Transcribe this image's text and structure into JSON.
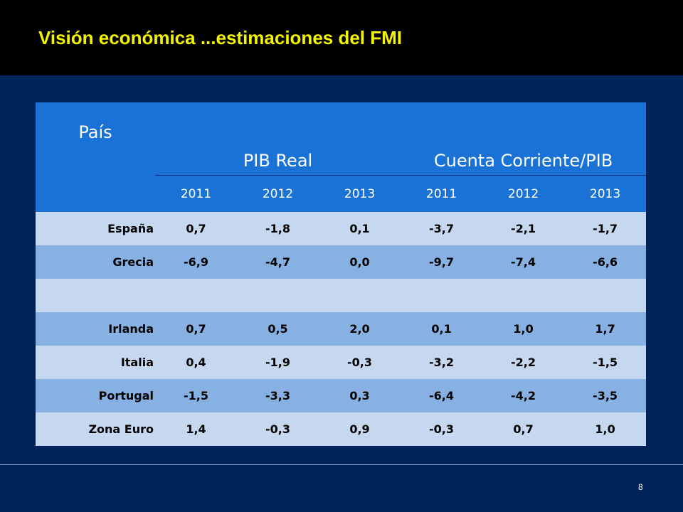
{
  "title": "Visión económica ...estimaciones del FMI",
  "table": {
    "col_country": "País",
    "group1": "PIB Real",
    "group2": "Cuenta Corriente/PIB",
    "years": [
      "2011",
      "2012",
      "2013",
      "2011",
      "2012",
      "2013"
    ],
    "rows": [
      {
        "country": "España",
        "values": [
          "0,7",
          "-1,8",
          "0,1",
          "-3,7",
          "-2,1",
          "-1,7"
        ]
      },
      {
        "country": "Grecia",
        "values": [
          "-6,9",
          "-4,7",
          "0,0",
          "-9,7",
          "-7,4",
          "-6,6"
        ]
      },
      {
        "country": "",
        "values": [
          "",
          "",
          "",
          "",
          "",
          ""
        ]
      },
      {
        "country": "Irlanda",
        "values": [
          "0,7",
          "0,5",
          "2,0",
          "0,1",
          "1,0",
          "1,7"
        ]
      },
      {
        "country": "Italia",
        "values": [
          "0,4",
          "-1,9",
          "-0,3",
          "-3,2",
          "-2,2",
          "-1,5"
        ]
      },
      {
        "country": "Portugal",
        "values": [
          "-1,5",
          "-3,3",
          "0,3",
          "-6,4",
          "-4,2",
          "-3,5"
        ]
      },
      {
        "country": "Zona Euro",
        "values": [
          "1,4",
          "-0,3",
          "0,9",
          "-0,3",
          "0,7",
          "1,0"
        ]
      }
    ]
  },
  "page_number": "8",
  "colors": {
    "background": "#00245a",
    "header": "#000000",
    "title": "#f4f400",
    "table_header": "#1a72d6",
    "row_light": "#c6d8f0",
    "row_dark": "#87b1e3"
  }
}
